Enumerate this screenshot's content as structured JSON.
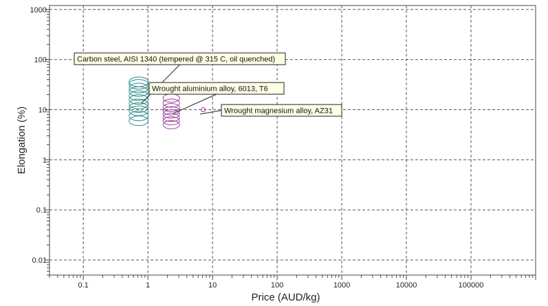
{
  "chart_data": {
    "type": "scatter",
    "title": "",
    "xlabel": "Price (AUD/kg)",
    "ylabel": "Elongation (%)",
    "x_scale": "log",
    "y_scale": "log",
    "xlim": [
      0.03,
      1000000
    ],
    "ylim": [
      0.005,
      1200
    ],
    "x_ticks": [
      0.1,
      1,
      10,
      100,
      1000,
      10000,
      100000
    ],
    "x_tick_labels": [
      "0.1",
      "1",
      "10",
      "100",
      "1000",
      "10000",
      "100000"
    ],
    "y_ticks": [
      0.01,
      0.1,
      1,
      10,
      100,
      1000
    ],
    "y_tick_labels": [
      "0.01",
      "0.1",
      "1",
      "10",
      "100",
      "1000"
    ],
    "grid": true,
    "legend": "none",
    "series": [
      {
        "name": "Carbon steel, AISI 1340 (tempered @ 315 C, oil quenched)",
        "color": "#2e8b8b",
        "x": [
          0.72,
          0.72,
          0.72,
          0.72,
          0.72,
          0.72,
          0.72,
          0.72,
          0.72,
          0.72,
          0.72
        ],
        "y": [
          6.0,
          7.5,
          9.5,
          11.0,
          13.0,
          16.0,
          19.0,
          23.0,
          27.0,
          32.0,
          36.0
        ]
      },
      {
        "name": "Wrought aluminium alloy, 6013, T6",
        "color": "#a040a0",
        "x": [
          2.3,
          2.3,
          2.3,
          2.3,
          2.3,
          2.3,
          2.3,
          2.3
        ],
        "y": [
          5.0,
          6.0,
          7.0,
          8.2,
          9.5,
          11.0,
          13.5,
          17.0
        ]
      },
      {
        "name": "Wrought magnesium alloy, AZ31",
        "color": "#a040a0",
        "x": [
          7.2
        ],
        "y": [
          10.0
        ]
      }
    ],
    "annotations": [
      {
        "text": "Carbon steel, AISI 1340 (tempered @ 315 C, oil quenched)",
        "series": 0
      },
      {
        "text": "Wrought aluminium alloy, 6013, T6",
        "series": 1
      },
      {
        "text": "Wrought magnesium alloy, AZ31",
        "series": 2
      }
    ]
  }
}
